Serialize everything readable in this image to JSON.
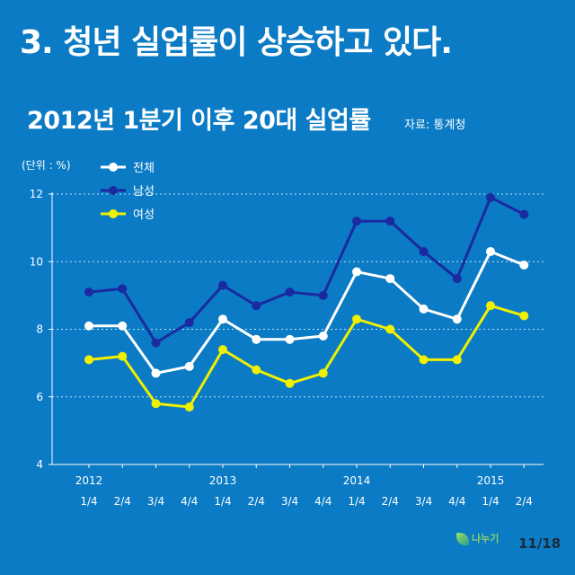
{
  "headline": "3. 청년 실업률이 상승하고 있다.",
  "chart_title": "2012년 1분기 이후 20대 실업률",
  "source": "자료: 통계청",
  "unit": "(단위 : %)",
  "logo_text": "나누기",
  "page_number": "11/18",
  "colors": {
    "background": "#0a7bc4",
    "total": "#ffffff",
    "male": "#1a2aa0",
    "female": "#f0f000",
    "axis": "#ffffff"
  },
  "chart_data": {
    "type": "line",
    "title": "2012년 1분기 이후 20대 실업률",
    "unit": "(단위 : %)",
    "xlabel": "",
    "ylabel": "",
    "ylim": [
      4,
      12
    ],
    "yticks": [
      4,
      6,
      8,
      10,
      12
    ],
    "grid": true,
    "legend_position": "top-left",
    "year_labels": [
      {
        "label": "2012",
        "index": 0
      },
      {
        "label": "2013",
        "index": 4
      },
      {
        "label": "2014",
        "index": 8
      },
      {
        "label": "2015",
        "index": 12
      }
    ],
    "categories": [
      "1/4",
      "2/4",
      "3/4",
      "4/4",
      "1/4",
      "2/4",
      "3/4",
      "4/4",
      "1/4",
      "2/4",
      "3/4",
      "4/4",
      "1/4",
      "2/4"
    ],
    "series": [
      {
        "name": "전체",
        "color": "#ffffff",
        "values": [
          8.1,
          8.1,
          6.7,
          6.9,
          8.3,
          7.7,
          7.7,
          7.8,
          9.7,
          9.5,
          8.6,
          8.3,
          10.3,
          9.9
        ]
      },
      {
        "name": "남성",
        "color": "#1a2aa0",
        "values": [
          9.1,
          9.2,
          7.6,
          8.2,
          9.3,
          8.7,
          9.1,
          9.0,
          11.2,
          11.2,
          10.3,
          9.5,
          11.9,
          11.4
        ]
      },
      {
        "name": "여성",
        "color": "#f0f000",
        "values": [
          7.1,
          7.2,
          5.8,
          5.7,
          7.4,
          6.8,
          6.4,
          6.7,
          8.3,
          8.0,
          7.1,
          7.1,
          8.7,
          8.4
        ]
      }
    ]
  }
}
